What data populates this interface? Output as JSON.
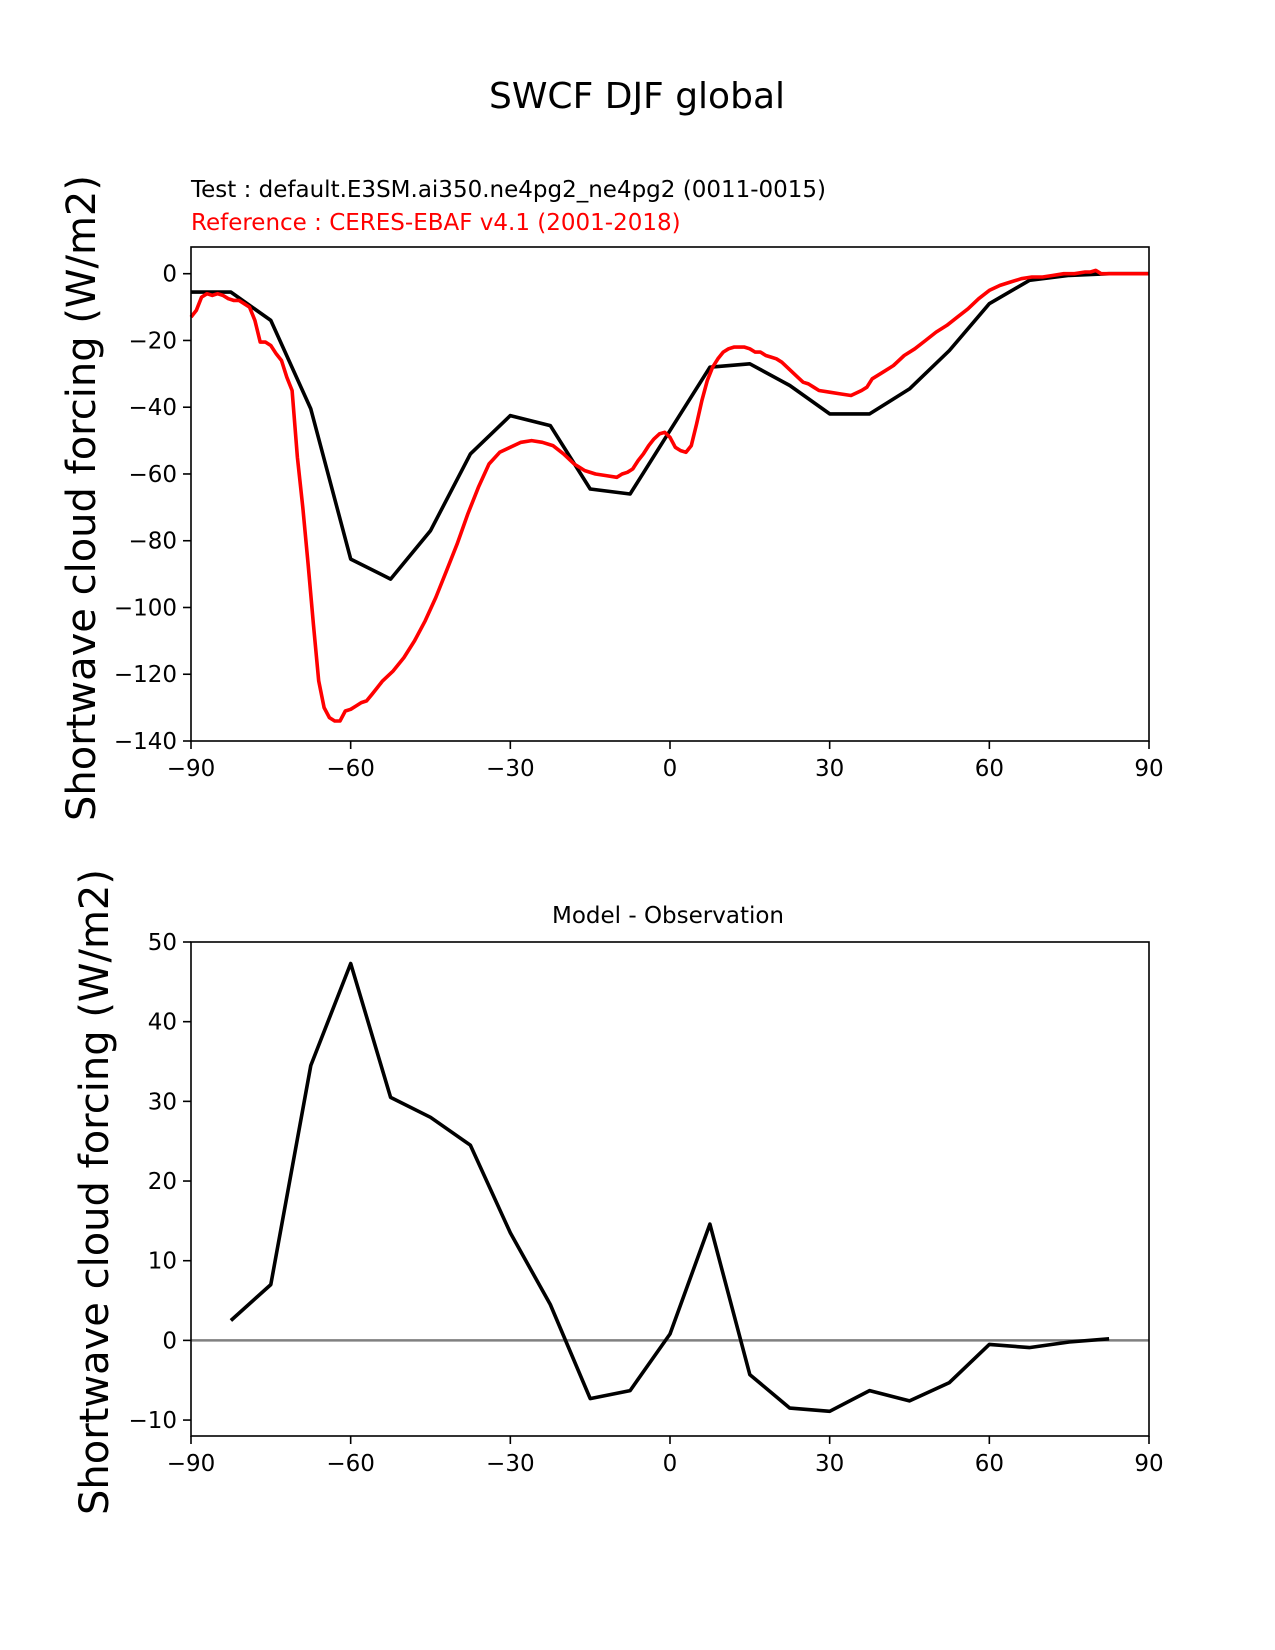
{
  "figure": {
    "title": "SWCF DJF global"
  },
  "chart_data": [
    {
      "type": "line",
      "test_label": "Test : default.E3SM.ai350.ne4pg2_ne4pg2 (0011-0015)",
      "reference_label": "Reference : CERES-EBAF v4.1 (2001-2018)",
      "ylabel": "Shortwave cloud forcing (W/m2)",
      "xlim": [
        -90,
        90
      ],
      "ylim": [
        -140,
        8
      ],
      "xticks": [
        -90,
        -60,
        -30,
        0,
        30,
        60,
        90
      ],
      "yticks": [
        0,
        -20,
        -40,
        -60,
        -80,
        -100,
        -120,
        -140
      ],
      "xtick_labels": [
        "−90",
        "−60",
        "−30",
        "0",
        "30",
        "60",
        "90"
      ],
      "ytick_labels": [
        "0",
        "−20",
        "−40",
        "−60",
        "−80",
        "−100",
        "−120",
        "−140"
      ],
      "series": [
        {
          "color": "#000000",
          "x": [
            -90,
            -82.5,
            -75,
            -67.5,
            -60,
            -52.5,
            -45,
            -37.5,
            -30,
            -22.5,
            -15,
            -7.5,
            0,
            7.5,
            15,
            22.5,
            30,
            37.5,
            45,
            52.5,
            60,
            67.5,
            75,
            82.5,
            90
          ],
          "y": [
            -5.5,
            -5.5,
            -14,
            -40.5,
            -85.5,
            -91.5,
            -77,
            -54,
            -42.5,
            -45.5,
            -64.5,
            -66,
            -47,
            -28,
            -27,
            -33.5,
            -42,
            -42,
            -34.5,
            -23,
            -9,
            -2,
            -0.5,
            0,
            0
          ]
        },
        {
          "color": "#ff0000",
          "x": [
            -90,
            -89,
            -88,
            -87,
            -86,
            -85,
            -84,
            -83,
            -82,
            -81,
            -80,
            -79,
            -78,
            -77,
            -76,
            -75,
            -74,
            -73,
            -72,
            -71,
            -70,
            -69,
            -68,
            -67,
            -66,
            -65,
            -64,
            -63,
            -62,
            -61,
            -60,
            -59,
            -58,
            -57,
            -56,
            -55,
            -54,
            -53,
            -52,
            -50,
            -48,
            -46,
            -44,
            -42,
            -40,
            -38,
            -36,
            -34,
            -32,
            -30,
            -28,
            -26,
            -24,
            -22,
            -20,
            -18,
            -16,
            -14,
            -12,
            -10,
            -9,
            -8,
            -7,
            -6,
            -5,
            -4,
            -3,
            -2,
            -1,
            0,
            1,
            2,
            3,
            4,
            5,
            6,
            7,
            8,
            9,
            10,
            11,
            12,
            13,
            14,
            15,
            16,
            17,
            18,
            19,
            20,
            21,
            22,
            23,
            24,
            25,
            26,
            27,
            28,
            30,
            32,
            34,
            36,
            37,
            38,
            40,
            42,
            44,
            46,
            48,
            50,
            52,
            54,
            56,
            58,
            60,
            62,
            64,
            66,
            68,
            70,
            72,
            74,
            76,
            78,
            79,
            80,
            81,
            82,
            84,
            86,
            88,
            90
          ],
          "y": [
            -13,
            -11,
            -7,
            -6,
            -6.5,
            -6,
            -6.5,
            -7.5,
            -8,
            -8,
            -9,
            -10,
            -14,
            -20.5,
            -20.5,
            -21.5,
            -24,
            -26,
            -31,
            -35,
            -55,
            -70,
            -87,
            -105,
            -122,
            -130,
            -133,
            -134,
            -134,
            -131,
            -130.5,
            -129.5,
            -128.5,
            -128,
            -126,
            -124,
            -122,
            -120.5,
            -119,
            -115,
            -110,
            -104,
            -97,
            -89,
            -81,
            -72,
            -64,
            -57,
            -53.5,
            -52,
            -50.5,
            -50,
            -50.5,
            -51.5,
            -54,
            -57,
            -59,
            -60,
            -60.5,
            -61,
            -60,
            -59.5,
            -58.5,
            -56,
            -54,
            -51.5,
            -49.5,
            -48,
            -47.5,
            -49,
            -52,
            -53,
            -53.5,
            -51.5,
            -45,
            -38,
            -32,
            -28,
            -25.5,
            -23.5,
            -22.5,
            -22,
            -22,
            -22,
            -22.5,
            -23.5,
            -23.5,
            -24.5,
            -25,
            -25.5,
            -26.5,
            -28,
            -29.5,
            -31,
            -32.5,
            -33,
            -34,
            -35,
            -35.5,
            -36,
            -36.5,
            -35,
            -34,
            -31.5,
            -29.5,
            -27.5,
            -24.5,
            -22.5,
            -20,
            -17.5,
            -15.5,
            -13,
            -10.5,
            -7.5,
            -5,
            -3.5,
            -2.5,
            -1.5,
            -1,
            -1,
            -0.5,
            0,
            0,
            0.5,
            0.5,
            1,
            0,
            0,
            0,
            0,
            0,
            0
          ]
        }
      ]
    },
    {
      "type": "line",
      "title": "Model - Observation",
      "ylabel": "Shortwave cloud forcing (W/m2)",
      "xlim": [
        -90,
        90
      ],
      "ylim": [
        -12,
        50
      ],
      "xticks": [
        -90,
        -60,
        -30,
        0,
        30,
        60,
        90
      ],
      "yticks": [
        50,
        40,
        30,
        20,
        10,
        0,
        -10
      ],
      "xtick_labels": [
        "−90",
        "−60",
        "−30",
        "0",
        "30",
        "60",
        "90"
      ],
      "ytick_labels": [
        "50",
        "40",
        "30",
        "20",
        "10",
        "0",
        "−10"
      ],
      "zero_line_color": "#808080",
      "series": [
        {
          "color": "#000000",
          "x": [
            -82.5,
            -75,
            -67.5,
            -60,
            -52.5,
            -45,
            -37.5,
            -30,
            -22.5,
            -15,
            -7.5,
            0,
            7.5,
            15,
            22.5,
            30,
            37.5,
            45,
            52.5,
            60,
            67.5,
            75,
            82.5
          ],
          "y": [
            2.5,
            7,
            34.5,
            47.3,
            30.5,
            28,
            24.5,
            13.5,
            4.5,
            -7.3,
            -6.3,
            0.8,
            14.6,
            -4.3,
            -8.5,
            -8.9,
            -6.3,
            -7.6,
            -5.3,
            -0.5,
            -0.9,
            -0.2,
            0.2
          ]
        }
      ]
    }
  ]
}
